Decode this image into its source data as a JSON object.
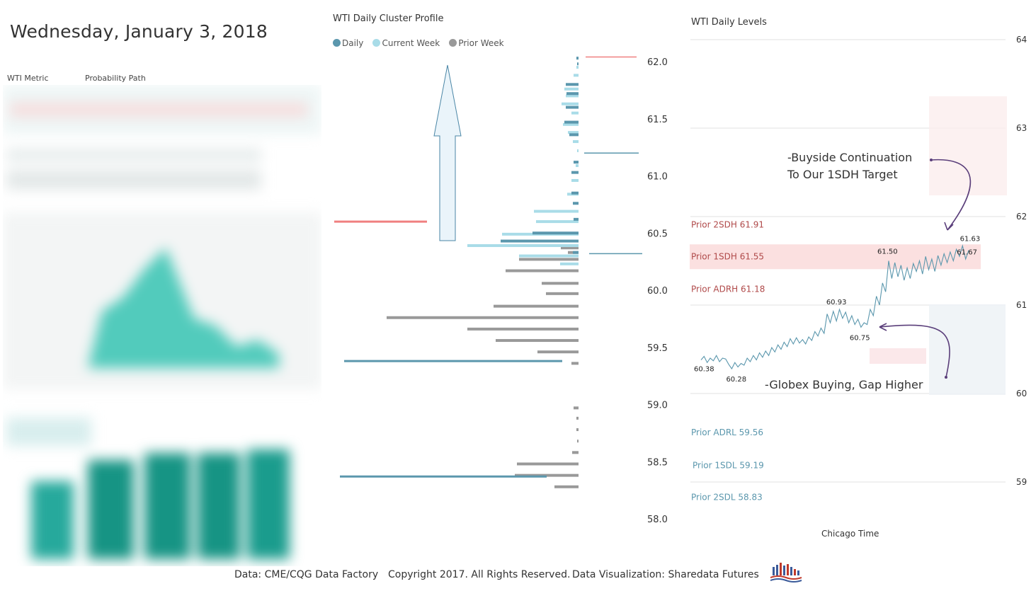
{
  "header": {
    "date": "Wednesday, January 3, 2018",
    "left_tabs": [
      "WTI Metric",
      "Probability Path"
    ]
  },
  "colors": {
    "daily": "#5b97ad",
    "current_week": "#a9dce8",
    "prior_week": "#999999",
    "red_line": "#f08080",
    "arrow_fill": "#eaf4fa",
    "arrow_stroke": "#4a86a6",
    "sdh_band": "#fbe0e0",
    "price_line": "#5b97ad",
    "annotation_arrow": "#5a3e7a",
    "upper_label": "#b04a4a",
    "lower_label": "#5b97ad"
  },
  "chart_data": [
    {
      "type": "bar",
      "orientation": "horizontal",
      "title": "WTI Daily Cluster Profile",
      "legend": [
        "Daily",
        "Current Week",
        "Prior Week"
      ],
      "legend_position": "top-left",
      "y_tick_labels": [
        "62.0",
        "61.5",
        "61.0",
        "60.5",
        "60.0",
        "59.5",
        "59.0",
        "58.5",
        "58.0"
      ],
      "ylim": [
        57.95,
        62.05
      ],
      "series": [
        {
          "name": "Daily",
          "values": [
            [
              62.03,
              3
            ],
            [
              61.98,
              2
            ],
            [
              61.8,
              18
            ],
            [
              61.72,
              17
            ],
            [
              61.6,
              18
            ],
            [
              61.47,
              20
            ],
            [
              61.36,
              13
            ],
            [
              61.12,
              7
            ],
            [
              61.03,
              10
            ],
            [
              60.85,
              10
            ],
            [
              60.76,
              8
            ],
            [
              60.62,
              7
            ],
            [
              60.5,
              65
            ],
            [
              60.43,
              110
            ],
            [
              60.33,
              8
            ]
          ]
        },
        {
          "name": "Current Week",
          "values": [
            [
              61.95,
              3
            ],
            [
              61.88,
              7
            ],
            [
              61.76,
              20
            ],
            [
              61.7,
              18
            ],
            [
              61.63,
              24
            ],
            [
              61.55,
              10
            ],
            [
              61.45,
              22
            ],
            [
              61.38,
              15
            ],
            [
              61.3,
              8
            ],
            [
              61.22,
              2
            ],
            [
              61.09,
              4
            ],
            [
              60.96,
              10
            ],
            [
              60.84,
              16
            ],
            [
              60.69,
              63
            ],
            [
              60.6,
              60
            ],
            [
              60.49,
              108
            ],
            [
              60.39,
              157
            ],
            [
              60.3,
              84
            ],
            [
              60.23,
              26
            ]
          ]
        },
        {
          "name": "Prior Week",
          "values": [
            [
              60.37,
              25
            ],
            [
              60.33,
              15
            ],
            [
              60.27,
              84
            ],
            [
              60.17,
              103
            ],
            [
              60.06,
              52
            ],
            [
              59.97,
              46
            ],
            [
              59.86,
              120
            ],
            [
              59.76,
              271
            ],
            [
              59.66,
              157
            ],
            [
              59.56,
              117
            ],
            [
              59.46,
              58
            ],
            [
              59.36,
              10
            ],
            [
              58.97,
              7
            ],
            [
              58.88,
              3
            ],
            [
              58.78,
              3
            ],
            [
              58.68,
              2
            ],
            [
              58.58,
              9
            ],
            [
              58.48,
              87
            ],
            [
              58.38,
              90
            ],
            [
              58.28,
              34
            ]
          ]
        }
      ],
      "highlight_lines": [
        {
          "price": 62.04,
          "color": "red"
        },
        {
          "price": 61.2,
          "color": "daily"
        },
        {
          "price": 60.32,
          "color": "daily"
        },
        {
          "price": 60.6,
          "color": "red",
          "side": "left"
        },
        {
          "price": 59.38,
          "color": "daily",
          "side": "left"
        },
        {
          "price": 58.37,
          "color": "daily",
          "side": "left"
        }
      ]
    },
    {
      "type": "line",
      "title": "WTI Daily Levels",
      "xlabel": "Chicago Time",
      "ylim": [
        58.9,
        64.05
      ],
      "y_tick_labels": [
        "64",
        "63",
        "62",
        "61",
        "60",
        "59"
      ],
      "grid": true,
      "levels": [
        {
          "label": "Prior 2SDH 61.91",
          "value": 61.91,
          "group": "upper"
        },
        {
          "label": "Prior 1SDH 61.55",
          "value": 61.55,
          "group": "upper"
        },
        {
          "label": "Prior ADRH 61.18",
          "value": 61.18,
          "group": "upper"
        },
        {
          "label": "Prior ADRL 59.56",
          "value": 59.56,
          "group": "lower"
        },
        {
          "label": "Prior 1SDL 59.19",
          "value": 59.19,
          "group": "lower"
        },
        {
          "label": "Prior 2SDL 58.83",
          "value": 58.83,
          "group": "lower"
        }
      ],
      "point_labels": [
        "60.38",
        "60.28",
        "60.93",
        "60.75",
        "61.50",
        "61.63",
        "61.67"
      ],
      "series": [
        {
          "values": [
            60.38,
            60.42,
            60.35,
            60.4,
            60.37,
            60.43,
            60.36,
            60.4,
            60.39,
            60.33,
            60.28,
            60.35,
            60.3,
            60.34,
            60.32,
            60.4,
            60.36,
            60.43,
            60.38,
            60.46,
            60.41,
            60.48,
            60.43,
            60.52,
            60.47,
            60.55,
            60.5,
            60.58,
            60.53,
            60.62,
            60.56,
            60.63,
            60.57,
            60.61,
            60.56,
            60.64,
            60.6,
            60.7,
            60.65,
            60.74,
            60.68,
            60.9,
            60.8,
            60.93,
            60.82,
            60.95,
            60.85,
            60.92,
            60.8,
            60.88,
            60.78,
            60.84,
            60.75,
            60.8,
            60.78,
            60.95,
            60.88,
            61.1,
            61.0,
            61.25,
            61.15,
            61.5,
            61.3,
            61.48,
            61.32,
            61.45,
            61.28,
            61.42,
            61.3,
            61.47,
            61.38,
            61.5,
            61.35,
            61.55,
            61.4,
            61.52,
            61.38,
            61.56,
            61.45,
            61.58,
            61.48,
            61.6,
            61.5,
            61.63,
            61.55,
            61.67,
            61.52,
            61.62
          ]
        }
      ],
      "annotations": [
        "-Buyside Continuation\nTo Our 1SDH Target",
        "-Globex Buying, Gap Higher"
      ]
    }
  ],
  "footer": {
    "source": "Data: CME/CQG Data Factory",
    "copyright": "Copyright 2017. All Rights Reserved.",
    "credit": "Data Visualization: Sharedata Futures"
  }
}
